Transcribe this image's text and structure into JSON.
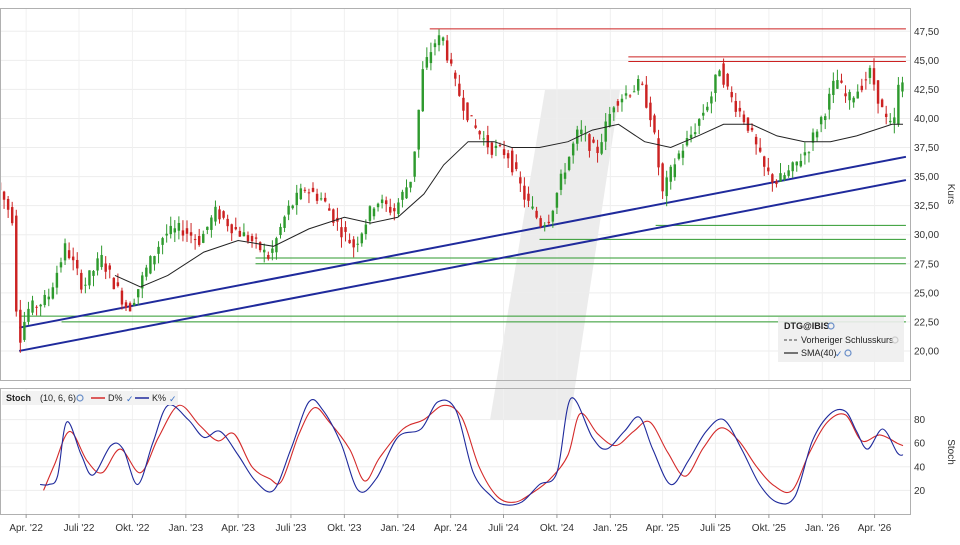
{
  "chart_data": [
    {
      "type": "candlestick",
      "legend": {
        "title": "DTG@IBIS",
        "entries": [
          {
            "label": "Vorheriger Schlusskurs",
            "style": "dashed",
            "color": "#444444"
          },
          {
            "label": "SMA(40)",
            "style": "solid",
            "color": "#222222"
          }
        ],
        "placement": "bottom-right"
      },
      "ylabel": "Kurs",
      "yticks": [
        "47,50",
        "45,00",
        "42,50",
        "40,00",
        "37,50",
        "35,00",
        "32,50",
        "30,00",
        "27,50",
        "25,00",
        "22,50",
        "20,00"
      ],
      "ylim": [
        17.5,
        49.5
      ],
      "xlim": [
        "2022-02-15",
        "2026-06-01"
      ],
      "x_tick_labels": [
        "Apr. '22",
        "Juli '22",
        "Okt. '22",
        "Jan. '23",
        "Apr. '23",
        "Juli '23",
        "Okt. '23",
        "Jan. '24",
        "Apr. '24",
        "Juli '24",
        "Okt. '24",
        "Jan. '25",
        "Apr. '25",
        "Juli '25",
        "Okt. '25",
        "Jan. '26",
        "Apr. '26"
      ],
      "x_tick_dates": [
        "2022-04-01",
        "2022-07-01",
        "2022-10-01",
        "2023-01-01",
        "2023-04-01",
        "2023-07-01",
        "2023-10-01",
        "2024-01-01",
        "2024-04-01",
        "2024-07-01",
        "2024-10-01",
        "2025-01-01",
        "2025-04-01",
        "2025-07-01",
        "2025-10-01",
        "2026-01-01",
        "2026-04-01"
      ],
      "price_path": [
        [
          "2022-02-15",
          34.5
        ],
        [
          "2022-03-01",
          33.0
        ],
        [
          "2022-03-15",
          31.5
        ],
        [
          "2022-03-25",
          20.5
        ],
        [
          "2022-04-10",
          23.5
        ],
        [
          "2022-05-15",
          24.5
        ],
        [
          "2022-06-15",
          29.0
        ],
        [
          "2022-07-15",
          25.5
        ],
        [
          "2022-08-15",
          28.0
        ],
        [
          "2022-09-15",
          25.0
        ],
        [
          "2022-10-01",
          23.5
        ],
        [
          "2022-11-01",
          27.0
        ],
        [
          "2022-12-01",
          30.0
        ],
        [
          "2023-01-01",
          30.5
        ],
        [
          "2023-02-01",
          29.5
        ],
        [
          "2023-03-01",
          32.0
        ],
        [
          "2023-04-01",
          30.5
        ],
        [
          "2023-05-01",
          29.5
        ],
        [
          "2023-06-01",
          28.0
        ],
        [
          "2023-07-01",
          32.0
        ],
        [
          "2023-08-01",
          34.0
        ],
        [
          "2023-09-01",
          33.0
        ],
        [
          "2023-10-01",
          30.5
        ],
        [
          "2023-10-25",
          29.0
        ],
        [
          "2023-12-01",
          33.0
        ],
        [
          "2024-01-01",
          32.0
        ],
        [
          "2024-02-01",
          35.0
        ],
        [
          "2024-02-20",
          44.0
        ],
        [
          "2024-03-10",
          46.5
        ],
        [
          "2024-03-25",
          47.0
        ],
        [
          "2024-04-15",
          43.0
        ],
        [
          "2024-05-15",
          39.5
        ],
        [
          "2024-06-15",
          37.5
        ],
        [
          "2024-07-15",
          37.0
        ],
        [
          "2024-08-15",
          33.0
        ],
        [
          "2024-09-10",
          31.0
        ],
        [
          "2024-09-25",
          31.5
        ],
        [
          "2024-10-20",
          35.5
        ],
        [
          "2024-11-15",
          39.0
        ],
        [
          "2024-12-15",
          37.0
        ],
        [
          "2025-01-15",
          41.5
        ],
        [
          "2025-02-15",
          42.5
        ],
        [
          "2025-03-01",
          43.0
        ],
        [
          "2025-03-20",
          40.0
        ],
        [
          "2025-04-08",
          33.5
        ],
        [
          "2025-05-01",
          36.5
        ],
        [
          "2025-06-01",
          39.0
        ],
        [
          "2025-07-01",
          42.0
        ],
        [
          "2025-07-15",
          44.5
        ],
        [
          "2025-08-01",
          42.0
        ],
        [
          "2025-09-01",
          39.5
        ],
        [
          "2025-10-01",
          35.5
        ],
        [
          "2025-10-20",
          34.5
        ],
        [
          "2025-11-15",
          35.5
        ],
        [
          "2025-12-15",
          37.5
        ],
        [
          "2026-01-15",
          41.0
        ],
        [
          "2026-02-01",
          43.5
        ],
        [
          "2026-02-20",
          41.5
        ],
        [
          "2026-03-10",
          42.5
        ],
        [
          "2026-04-01",
          44.0
        ],
        [
          "2026-04-25",
          40.0
        ],
        [
          "2026-05-10",
          39.0
        ],
        [
          "2026-05-20",
          43.0
        ]
      ],
      "sma_path": [
        [
          "2022-09-01",
          26.5
        ],
        [
          "2022-10-15",
          25.5
        ],
        [
          "2022-12-01",
          26.5
        ],
        [
          "2023-02-01",
          28.5
        ],
        [
          "2023-04-01",
          29.5
        ],
        [
          "2023-06-01",
          29.0
        ],
        [
          "2023-08-01",
          30.5
        ],
        [
          "2023-10-01",
          31.5
        ],
        [
          "2023-11-15",
          31.0
        ],
        [
          "2024-01-01",
          31.5
        ],
        [
          "2024-02-15",
          33.5
        ],
        [
          "2024-03-20",
          36.0
        ],
        [
          "2024-05-01",
          38.0
        ],
        [
          "2024-06-15",
          38.0
        ],
        [
          "2024-07-15",
          37.5
        ],
        [
          "2024-09-01",
          37.5
        ],
        [
          "2024-10-20",
          38.0
        ],
        [
          "2024-12-01",
          39.0
        ],
        [
          "2025-01-15",
          39.5
        ],
        [
          "2025-03-01",
          38.0
        ],
        [
          "2025-04-15",
          37.5
        ],
        [
          "2025-06-01",
          38.5
        ],
        [
          "2025-07-15",
          39.5
        ],
        [
          "2025-09-01",
          39.5
        ],
        [
          "2025-10-15",
          38.5
        ],
        [
          "2025-12-01",
          38.0
        ],
        [
          "2026-01-15",
          38.0
        ],
        [
          "2026-03-01",
          38.5
        ],
        [
          "2026-05-01",
          39.5
        ],
        [
          "2026-05-20",
          39.5
        ]
      ],
      "trend_lines": [
        {
          "start": [
            "2022-03-20",
            22.0
          ],
          "end": [
            "2026-05-25",
            36.7
          ],
          "color": "#1f2a9c"
        },
        {
          "start": [
            "2022-03-20",
            20.0
          ],
          "end": [
            "2026-05-25",
            34.7
          ],
          "color": "#1f2a9c"
        }
      ],
      "resistance_lines": [
        {
          "y": 47.7,
          "from": "2024-02-25",
          "to": "2026-05-25"
        },
        {
          "y": 45.3,
          "from": "2025-02-01",
          "to": "2026-05-25"
        },
        {
          "y": 44.9,
          "from": "2025-02-01",
          "to": "2026-05-25"
        }
      ],
      "support_lines": [
        {
          "y": 30.8,
          "from": "2025-03-20",
          "to": "2026-05-25"
        },
        {
          "y": 29.6,
          "from": "2024-09-01",
          "to": "2026-05-25"
        },
        {
          "y": 28.0,
          "from": "2023-05-01",
          "to": "2026-05-25"
        },
        {
          "y": 27.5,
          "from": "2023-05-01",
          "to": "2026-05-25"
        },
        {
          "y": 23.0,
          "from": "2022-03-20",
          "to": "2026-05-25"
        },
        {
          "y": 22.5,
          "from": "2022-06-01",
          "to": "2026-05-25"
        }
      ]
    },
    {
      "type": "line",
      "indicator": "Stoch",
      "params": "(10, 6, 6)",
      "ylabel": "Stoch",
      "ylim": [
        0,
        100
      ],
      "yticks": [
        20,
        40,
        60,
        80
      ],
      "series": [
        {
          "name": "D%",
          "color": "#d42a2a",
          "values": [
            [
              "2022-05-01",
              20
            ],
            [
              "2022-05-20",
              42
            ],
            [
              "2022-06-15",
              70
            ],
            [
              "2022-07-15",
              45
            ],
            [
              "2022-08-10",
              35
            ],
            [
              "2022-09-10",
              55
            ],
            [
              "2022-10-15",
              35
            ],
            [
              "2022-11-15",
              65
            ],
            [
              "2022-12-20",
              92
            ],
            [
              "2023-01-25",
              75
            ],
            [
              "2023-02-25",
              62
            ],
            [
              "2023-03-25",
              68
            ],
            [
              "2023-04-25",
              40
            ],
            [
              "2023-05-25",
              30
            ],
            [
              "2023-06-15",
              28
            ],
            [
              "2023-07-15",
              68
            ],
            [
              "2023-08-10",
              90
            ],
            [
              "2023-09-05",
              78
            ],
            [
              "2023-10-10",
              55
            ],
            [
              "2023-11-05",
              28
            ],
            [
              "2023-12-01",
              48
            ],
            [
              "2024-01-10",
              72
            ],
            [
              "2024-02-15",
              80
            ],
            [
              "2024-03-20",
              92
            ],
            [
              "2024-04-20",
              82
            ],
            [
              "2024-05-20",
              40
            ],
            [
              "2024-06-20",
              15
            ],
            [
              "2024-07-20",
              10
            ],
            [
              "2024-08-20",
              18
            ],
            [
              "2024-09-20",
              30
            ],
            [
              "2024-10-20",
              50
            ],
            [
              "2024-11-10",
              85
            ],
            [
              "2024-12-10",
              68
            ],
            [
              "2025-01-10",
              58
            ],
            [
              "2025-02-10",
              70
            ],
            [
              "2025-03-10",
              78
            ],
            [
              "2025-04-10",
              52
            ],
            [
              "2025-05-10",
              32
            ],
            [
              "2025-06-10",
              56
            ],
            [
              "2025-07-10",
              73
            ],
            [
              "2025-08-10",
              62
            ],
            [
              "2025-09-10",
              40
            ],
            [
              "2025-10-10",
              24
            ],
            [
              "2025-11-10",
              20
            ],
            [
              "2025-12-10",
              52
            ],
            [
              "2026-01-10",
              78
            ],
            [
              "2026-02-10",
              84
            ],
            [
              "2026-03-10",
              62
            ],
            [
              "2026-04-10",
              67
            ],
            [
              "2026-05-10",
              60
            ],
            [
              "2026-05-20",
              58
            ]
          ]
        },
        {
          "name": "K%",
          "color": "#1f2a9c",
          "values": [
            [
              "2022-04-25",
              25
            ],
            [
              "2022-05-10",
              25
            ],
            [
              "2022-05-25",
              32
            ],
            [
              "2022-06-10",
              78
            ],
            [
              "2022-07-05",
              50
            ],
            [
              "2022-07-25",
              33
            ],
            [
              "2022-08-25",
              58
            ],
            [
              "2022-09-15",
              55
            ],
            [
              "2022-10-10",
              25
            ],
            [
              "2022-11-05",
              60
            ],
            [
              "2022-12-01",
              92
            ],
            [
              "2023-01-05",
              80
            ],
            [
              "2023-02-01",
              65
            ],
            [
              "2023-03-01",
              70
            ],
            [
              "2023-04-01",
              50
            ],
            [
              "2023-05-01",
              28
            ],
            [
              "2023-06-01",
              20
            ],
            [
              "2023-07-01",
              55
            ],
            [
              "2023-08-01",
              95
            ],
            [
              "2023-08-25",
              88
            ],
            [
              "2023-09-25",
              60
            ],
            [
              "2023-10-25",
              20
            ],
            [
              "2023-11-25",
              30
            ],
            [
              "2024-01-01",
              65
            ],
            [
              "2024-02-10",
              72
            ],
            [
              "2024-03-10",
              95
            ],
            [
              "2024-04-10",
              88
            ],
            [
              "2024-05-10",
              35
            ],
            [
              "2024-06-10",
              15
            ],
            [
              "2024-07-01",
              8
            ],
            [
              "2024-08-01",
              10
            ],
            [
              "2024-09-01",
              25
            ],
            [
              "2024-10-01",
              35
            ],
            [
              "2024-10-25",
              98
            ],
            [
              "2024-12-01",
              65
            ],
            [
              "2024-12-25",
              55
            ],
            [
              "2025-01-25",
              70
            ],
            [
              "2025-02-20",
              82
            ],
            [
              "2025-03-15",
              55
            ],
            [
              "2025-04-15",
              25
            ],
            [
              "2025-05-15",
              45
            ],
            [
              "2025-06-15",
              70
            ],
            [
              "2025-07-15",
              80
            ],
            [
              "2025-08-15",
              55
            ],
            [
              "2025-09-15",
              25
            ],
            [
              "2025-10-15",
              10
            ],
            [
              "2025-11-15",
              15
            ],
            [
              "2025-12-15",
              62
            ],
            [
              "2026-01-15",
              85
            ],
            [
              "2026-02-10",
              87
            ],
            [
              "2026-03-01",
              70
            ],
            [
              "2026-03-20",
              55
            ],
            [
              "2026-04-15",
              72
            ],
            [
              "2026-05-10",
              52
            ],
            [
              "2026-05-20",
              50
            ]
          ]
        }
      ],
      "legend_entries": [
        "D%",
        "K%"
      ]
    }
  ]
}
